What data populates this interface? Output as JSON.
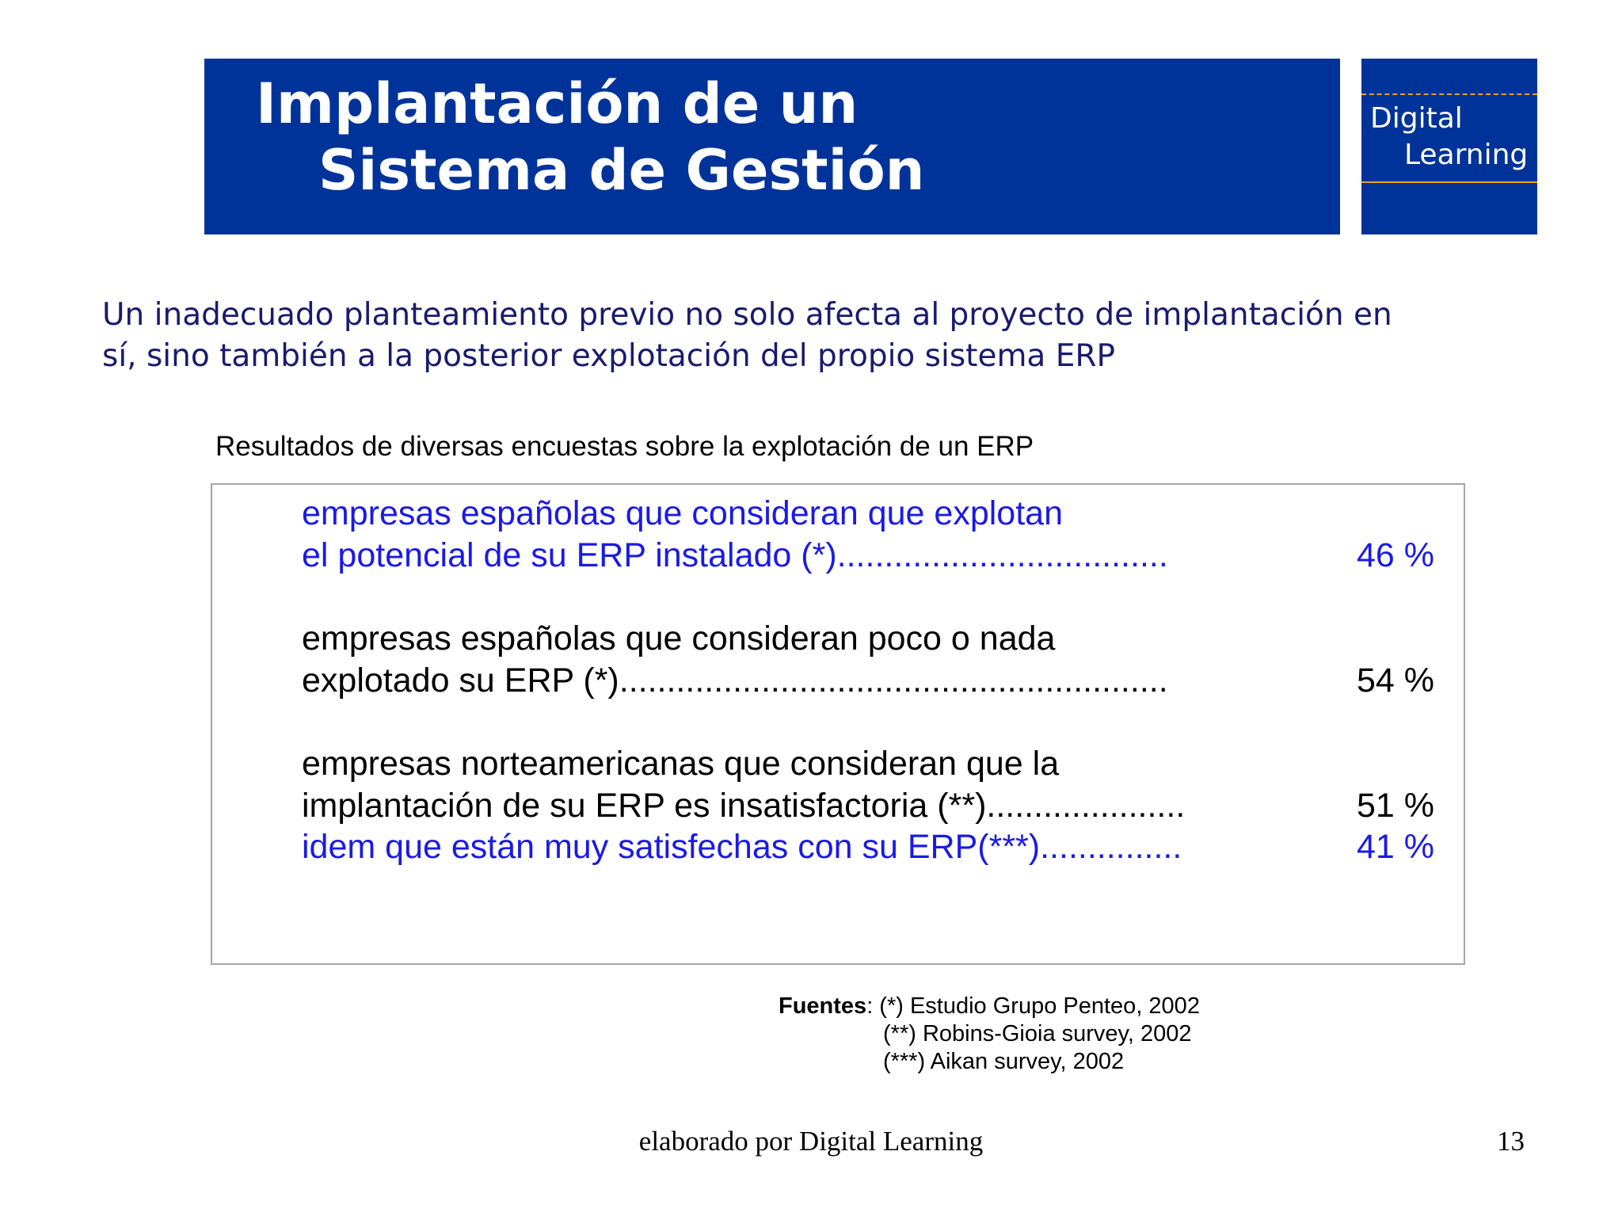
{
  "header": {
    "title_line1": "Implantación de un",
    "title_line2": "Sistema de Gestión",
    "logo_line1": "Digital",
    "logo_line2": "Learning"
  },
  "intro": {
    "line1": "Un inadecuado planteamiento previo no solo afecta al proyecto de implantación en",
    "line2": "sí, sino también a la posterior explotación del propio sistema ERP"
  },
  "survey": {
    "caption": "Resultados de diversas encuestas sobre la explotación de un ERP",
    "items": [
      {
        "line1": "empresas españolas que consideran que explotan",
        "line2": "el potencial de su ERP instalado (*)...................................",
        "value": "46 %",
        "color": "#1a1ae6"
      },
      {
        "line1": "empresas españolas que consideran poco o nada",
        "line2": "explotado su ERP (*)..........................................................",
        "value": "54 %",
        "color": "#000000"
      },
      {
        "line1": "empresas norteamericanas que consideran que la",
        "line2": "implantación de su ERP es insatisfactoria (**).....................",
        "value": "51 %",
        "color": "#000000"
      },
      {
        "line1": "idem que están muy satisfechas con su ERP(***)...............",
        "value": "41 %",
        "color": "#1a1ae6"
      }
    ]
  },
  "sources": {
    "label": "Fuentes",
    "line1": ": (*) Estudio Grupo Penteo, 2002",
    "line2": "(**) Robins-Gioia survey, 2002",
    "line3": "(***) Aikan survey, 2002"
  },
  "footer": {
    "credit": "elaborado por Digital Learning",
    "page_number": "13"
  }
}
